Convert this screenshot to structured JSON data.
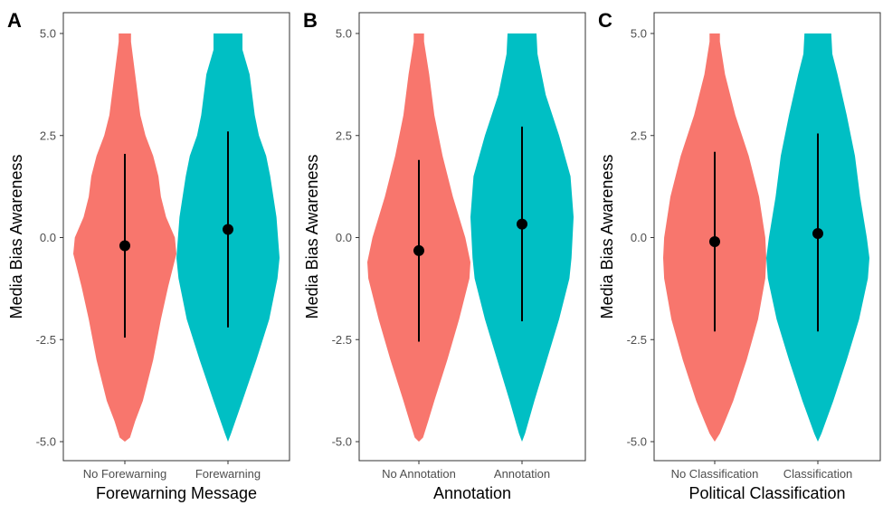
{
  "chart_data": [
    {
      "type": "violin",
      "panel_label": "A",
      "xlabel": "Forewarning Message",
      "ylabel": "Media Bias Awareness",
      "ylim": [
        -5,
        5
      ],
      "yticks": [
        -5.0,
        -2.5,
        0.0,
        2.5,
        5.0
      ],
      "ytick_labels": [
        "-5.0",
        "-2.5",
        "0.0",
        "2.5",
        "5.0"
      ],
      "categories": [
        "No Forewarning",
        "Forewarning"
      ],
      "series": [
        {
          "category": "No Forewarning",
          "color": "#F8766D",
          "mean": -0.2,
          "lower": -2.45,
          "upper": 2.05,
          "density": [
            [
              -5.0,
              0.0
            ],
            [
              -4.9,
              0.1
            ],
            [
              -4.5,
              0.2
            ],
            [
              -4.0,
              0.35
            ],
            [
              -3.0,
              0.55
            ],
            [
              -2.0,
              0.7
            ],
            [
              -1.2,
              0.84
            ],
            [
              -0.4,
              1.0
            ],
            [
              0.0,
              0.97
            ],
            [
              0.5,
              0.8
            ],
            [
              1.0,
              0.7
            ],
            [
              1.5,
              0.65
            ],
            [
              2.0,
              0.55
            ],
            [
              2.5,
              0.4
            ],
            [
              3.0,
              0.3
            ],
            [
              4.0,
              0.2
            ],
            [
              4.8,
              0.12
            ],
            [
              5.0,
              0.12
            ]
          ]
        },
        {
          "category": "Forewarning",
          "color": "#00BFC4",
          "mean": 0.2,
          "lower": -2.2,
          "upper": 2.6,
          "density": [
            [
              -5.0,
              0.0
            ],
            [
              -4.8,
              0.06
            ],
            [
              -4.0,
              0.28
            ],
            [
              -3.0,
              0.55
            ],
            [
              -2.0,
              0.8
            ],
            [
              -1.0,
              0.96
            ],
            [
              -0.5,
              1.0
            ],
            [
              0.5,
              0.94
            ],
            [
              1.5,
              0.82
            ],
            [
              2.0,
              0.74
            ],
            [
              2.5,
              0.6
            ],
            [
              3.0,
              0.52
            ],
            [
              4.0,
              0.42
            ],
            [
              4.6,
              0.28
            ],
            [
              5.0,
              0.28
            ]
          ]
        }
      ]
    },
    {
      "type": "violin",
      "panel_label": "B",
      "xlabel": "Annotation",
      "ylabel": "Media Bias Awareness",
      "ylim": [
        -5,
        5
      ],
      "yticks": [
        -5.0,
        -2.5,
        0.0,
        2.5,
        5.0
      ],
      "ytick_labels": [
        "-5.0",
        "-2.5",
        "0.0",
        "2.5",
        "5.0"
      ],
      "categories": [
        "No Annotation",
        "Annotation"
      ],
      "series": [
        {
          "category": "No Annotation",
          "color": "#F8766D",
          "mean": -0.32,
          "lower": -2.55,
          "upper": 1.9,
          "density": [
            [
              -5.0,
              0.0
            ],
            [
              -4.9,
              0.08
            ],
            [
              -4.5,
              0.18
            ],
            [
              -4.0,
              0.3
            ],
            [
              -3.0,
              0.55
            ],
            [
              -2.0,
              0.78
            ],
            [
              -1.0,
              0.98
            ],
            [
              -0.6,
              1.0
            ],
            [
              0.0,
              0.9
            ],
            [
              1.0,
              0.66
            ],
            [
              2.0,
              0.46
            ],
            [
              3.0,
              0.3
            ],
            [
              4.0,
              0.2
            ],
            [
              4.8,
              0.1
            ],
            [
              5.0,
              0.1
            ]
          ]
        },
        {
          "category": "Annotation",
          "color": "#00BFC4",
          "mean": 0.33,
          "lower": -2.05,
          "upper": 2.72,
          "density": [
            [
              -5.0,
              0.0
            ],
            [
              -4.8,
              0.06
            ],
            [
              -4.0,
              0.24
            ],
            [
              -3.0,
              0.48
            ],
            [
              -2.0,
              0.72
            ],
            [
              -1.0,
              0.92
            ],
            [
              -0.5,
              0.96
            ],
            [
              0.5,
              1.0
            ],
            [
              1.5,
              0.94
            ],
            [
              2.5,
              0.72
            ],
            [
              3.5,
              0.46
            ],
            [
              4.5,
              0.3
            ],
            [
              5.0,
              0.28
            ]
          ]
        }
      ]
    },
    {
      "type": "violin",
      "panel_label": "C",
      "xlabel": "Political Classification",
      "ylabel": "Media Bias Awareness",
      "ylim": [
        -5,
        5
      ],
      "yticks": [
        -5.0,
        -2.5,
        0.0,
        2.5,
        5.0
      ],
      "ytick_labels": [
        "-5.0",
        "-2.5",
        "0.0",
        "2.5",
        "5.0"
      ],
      "categories": [
        "No Classification",
        "Classification"
      ],
      "series": [
        {
          "category": "No Classification",
          "color": "#F8766D",
          "mean": -0.1,
          "lower": -2.3,
          "upper": 2.1,
          "density": [
            [
              -5.0,
              0.0
            ],
            [
              -4.8,
              0.1
            ],
            [
              -4.5,
              0.2
            ],
            [
              -4.0,
              0.36
            ],
            [
              -3.0,
              0.62
            ],
            [
              -2.0,
              0.84
            ],
            [
              -1.0,
              0.98
            ],
            [
              -0.5,
              1.0
            ],
            [
              0.0,
              0.98
            ],
            [
              1.0,
              0.86
            ],
            [
              2.0,
              0.66
            ],
            [
              3.0,
              0.4
            ],
            [
              4.0,
              0.2
            ],
            [
              4.8,
              0.1
            ],
            [
              5.0,
              0.1
            ]
          ]
        },
        {
          "category": "Classification",
          "color": "#00BFC4",
          "mean": 0.1,
          "lower": -2.3,
          "upper": 2.55,
          "density": [
            [
              -5.0,
              0.0
            ],
            [
              -4.8,
              0.07
            ],
            [
              -4.0,
              0.3
            ],
            [
              -3.0,
              0.56
            ],
            [
              -2.0,
              0.8
            ],
            [
              -1.0,
              0.97
            ],
            [
              -0.5,
              1.0
            ],
            [
              0.0,
              0.95
            ],
            [
              1.0,
              0.82
            ],
            [
              2.0,
              0.72
            ],
            [
              3.0,
              0.56
            ],
            [
              4.0,
              0.38
            ],
            [
              4.5,
              0.28
            ],
            [
              5.0,
              0.26
            ]
          ]
        }
      ]
    }
  ]
}
